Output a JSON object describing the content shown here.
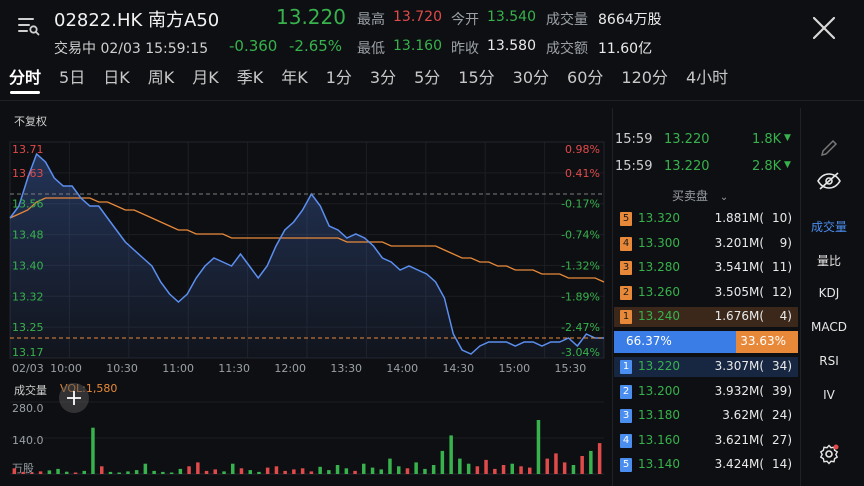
{
  "header": {
    "code": "02822.HK 南方A50",
    "price": "13.220",
    "status": "交易中 02/03 15:59:15",
    "change": "-0.360",
    "change_pct": "-2.65%",
    "high_label": "最高",
    "high": "13.720",
    "open_label": "今开",
    "open": "13.540",
    "volume_label": "成交量",
    "volume": "8664万股",
    "low_label": "最低",
    "low": "13.160",
    "prev_close_label": "昨收",
    "prev_close": "13.580",
    "turnover_label": "成交额",
    "turnover": "11.60亿"
  },
  "tabs": [
    "分时",
    "5日",
    "日K",
    "周K",
    "月K",
    "季K",
    "年K",
    "1分",
    "3分",
    "5分",
    "15分",
    "30分",
    "60分",
    "120分",
    "4小时"
  ],
  "active_tab": 0,
  "chart": {
    "adjust_label": "不复权",
    "volume_title": "成交量",
    "vol_readout": "VOL:1,580",
    "vol_ticks": [
      "280.0",
      "140.0",
      "万股"
    ],
    "time_labels": [
      "02/03",
      "10:00",
      "10:30",
      "11:00",
      "11:30",
      "12:00",
      "13:30",
      "14:00",
      "14:30",
      "15:00",
      "15:30"
    ]
  },
  "chart_data": {
    "type": "line",
    "x": [
      "09:30",
      "09:35",
      "09:40",
      "09:45",
      "09:50",
      "09:55",
      "10:00",
      "10:05",
      "10:10",
      "10:15",
      "10:20",
      "10:25",
      "10:30",
      "10:35",
      "10:40",
      "10:45",
      "10:50",
      "10:55",
      "11:00",
      "11:05",
      "11:10",
      "11:15",
      "11:20",
      "11:25",
      "11:30",
      "11:35",
      "11:40",
      "11:45",
      "11:50",
      "11:55",
      "12:00",
      "13:00",
      "13:05",
      "13:10",
      "13:15",
      "13:20",
      "13:25",
      "13:30",
      "13:35",
      "13:40",
      "13:45",
      "13:50",
      "13:55",
      "14:00",
      "14:05",
      "14:10",
      "14:15",
      "14:20",
      "14:25",
      "14:30",
      "14:35",
      "14:40",
      "14:45",
      "14:50",
      "14:55",
      "15:00",
      "15:05",
      "15:10",
      "15:15",
      "15:20",
      "15:25",
      "15:30",
      "15:35",
      "15:40",
      "15:45",
      "15:50",
      "15:55",
      "16:00"
    ],
    "series": [
      {
        "name": "price",
        "color": "#5b8ff0",
        "values": [
          13.52,
          13.55,
          13.62,
          13.68,
          13.66,
          13.62,
          13.6,
          13.6,
          13.57,
          13.55,
          13.55,
          13.52,
          13.49,
          13.46,
          13.44,
          13.42,
          13.4,
          13.36,
          13.33,
          13.31,
          13.33,
          13.37,
          13.4,
          13.42,
          13.41,
          13.4,
          13.43,
          13.4,
          13.37,
          13.4,
          13.45,
          13.49,
          13.51,
          13.54,
          13.58,
          13.55,
          13.5,
          13.49,
          13.47,
          13.48,
          13.47,
          13.45,
          13.42,
          13.41,
          13.39,
          13.4,
          13.39,
          13.38,
          13.36,
          13.32,
          13.23,
          13.19,
          13.18,
          13.2,
          13.21,
          13.21,
          13.21,
          13.2,
          13.21,
          13.21,
          13.2,
          13.21,
          13.21,
          13.22,
          13.2,
          13.23,
          13.22,
          13.22
        ]
      },
      {
        "name": "avg",
        "color": "#e8893a",
        "values": [
          13.52,
          13.53,
          13.54,
          13.56,
          13.57,
          13.57,
          13.57,
          13.57,
          13.57,
          13.57,
          13.56,
          13.56,
          13.55,
          13.54,
          13.54,
          13.53,
          13.52,
          13.51,
          13.5,
          13.49,
          13.49,
          13.48,
          13.48,
          13.48,
          13.48,
          13.47,
          13.47,
          13.47,
          13.47,
          13.47,
          13.47,
          13.47,
          13.47,
          13.47,
          13.47,
          13.47,
          13.47,
          13.47,
          13.46,
          13.46,
          13.46,
          13.46,
          13.46,
          13.45,
          13.45,
          13.45,
          13.45,
          13.45,
          13.45,
          13.44,
          13.43,
          13.42,
          13.42,
          13.41,
          13.41,
          13.4,
          13.4,
          13.39,
          13.39,
          13.39,
          13.38,
          13.38,
          13.38,
          13.37,
          13.37,
          13.37,
          13.37,
          13.36
        ]
      }
    ],
    "y_labels": [
      "13.71",
      "13.63",
      "13.56",
      "13.48",
      "13.40",
      "13.32",
      "13.25",
      "13.17"
    ],
    "pct_labels": [
      "0.98%",
      "0.41%",
      "-0.17%",
      "-0.74%",
      "-1.32%",
      "-1.89%",
      "-2.47%",
      "-3.04%"
    ],
    "ylim": [
      13.17,
      13.71
    ],
    "prev_close": 13.58,
    "current": 13.22,
    "volume": [
      22,
      8,
      5,
      10,
      14,
      20,
      9,
      6,
      12,
      180,
      30,
      8,
      6,
      10,
      15,
      40,
      12,
      8,
      6,
      20,
      30,
      45,
      12,
      18,
      10,
      40,
      22,
      15,
      8,
      25,
      30,
      12,
      18,
      22,
      10,
      28,
      15,
      35,
      22,
      12,
      40,
      25,
      18,
      60,
      30,
      22,
      45,
      20,
      35,
      90,
      150,
      60,
      40,
      30,
      55,
      20,
      35,
      40,
      30,
      25,
      210,
      60,
      80,
      45,
      35,
      70,
      90,
      120
    ]
  },
  "right_panel": {
    "trades": [
      {
        "time": "15:59",
        "price": "13.220",
        "vol": "1.8K"
      },
      {
        "time": "15:59",
        "price": "13.220",
        "vol": "2.8K"
      }
    ],
    "orderbook_title": "买卖盘",
    "asks": [
      {
        "level": "5",
        "price": "13.320",
        "vol": "1.881M(",
        "count": "10)"
      },
      {
        "level": "4",
        "price": "13.300",
        "vol": "3.201M(",
        "count": "9)"
      },
      {
        "level": "3",
        "price": "13.280",
        "vol": "3.541M(",
        "count": "11)"
      },
      {
        "level": "2",
        "price": "13.260",
        "vol": "3.505M(",
        "count": "12)"
      },
      {
        "level": "1",
        "price": "13.240",
        "vol": "1.676M(",
        "count": "4)"
      }
    ],
    "ratio_bid": "66.37%",
    "ratio_ask": "33.63%",
    "bids": [
      {
        "level": "1",
        "price": "13.220",
        "vol": "3.307M(",
        "count": "34)"
      },
      {
        "level": "2",
        "price": "13.200",
        "vol": "3.932M(",
        "count": "39)"
      },
      {
        "level": "3",
        "price": "13.180",
        "vol": "3.62M(",
        "count": "24)"
      },
      {
        "level": "4",
        "price": "13.160",
        "vol": "3.621M(",
        "count": "27)"
      },
      {
        "level": "5",
        "price": "13.140",
        "vol": "3.424M(",
        "count": "14)"
      }
    ]
  },
  "side_menu": {
    "items": [
      "成交量",
      "量比",
      "KDJ",
      "MACD",
      "RSI",
      "IV"
    ],
    "active": 0
  },
  "colors": {
    "up": "#e04a4a",
    "down": "#37b24d",
    "accent": "#4a8ef0",
    "avg": "#e8893a"
  }
}
